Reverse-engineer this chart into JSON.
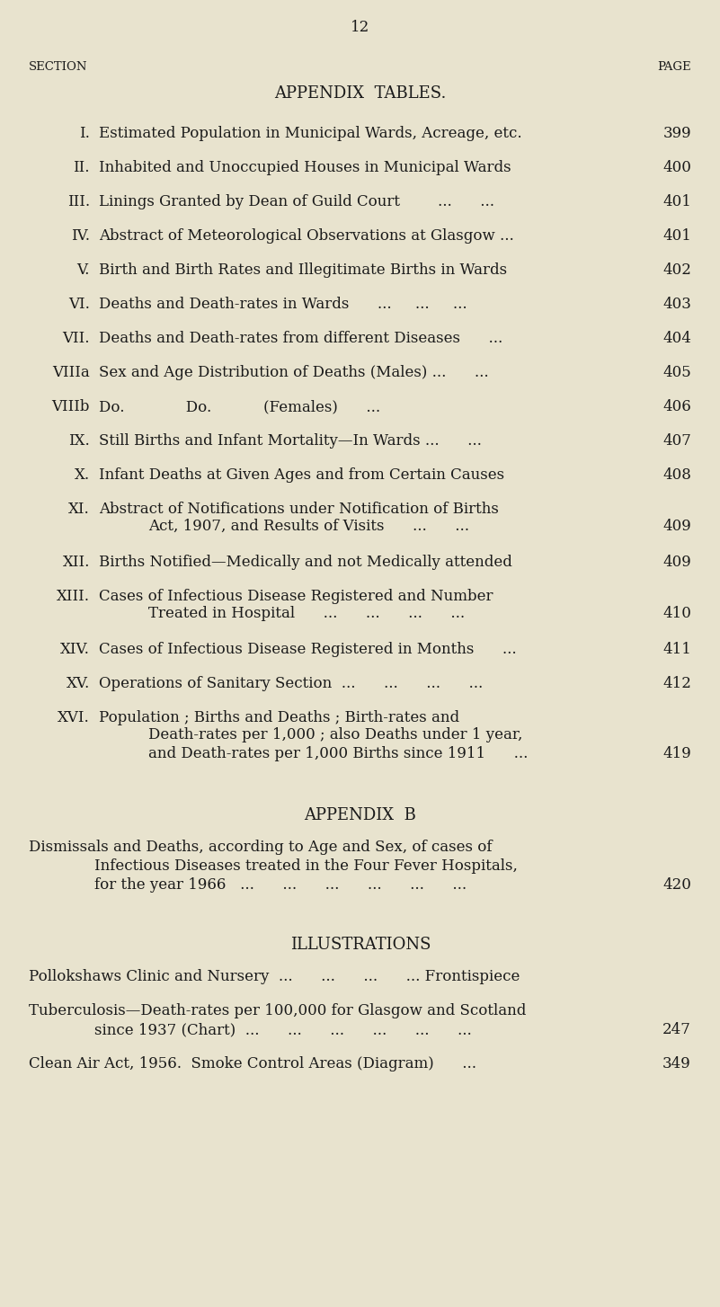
{
  "bg_color": "#e8e3ce",
  "text_color": "#1a1a1a",
  "page_number": "12",
  "section_label": "SECTION",
  "page_label": "PAGE",
  "appendix_tables_title": "APPENDIX  TABLES.",
  "entries": [
    {
      "num": "I.",
      "text": "Estimated Population in Municipal Wards, Acreage, etc.",
      "page": "399",
      "extra_lines": []
    },
    {
      "num": "II.",
      "text": "Inhabited and Unoccupied Houses in Municipal Wards",
      "page": "400",
      "extra_lines": []
    },
    {
      "num": "III.",
      "text": "Linings Granted by Dean of Guild Court        ...      ...",
      "page": "401",
      "extra_lines": []
    },
    {
      "num": "IV.",
      "text": "Abstract of Meteorological Observations at Glasgow ...",
      "page": "401",
      "extra_lines": []
    },
    {
      "num": "V.",
      "text": "Birth and Birth Rates and Illegitimate Births in Wards",
      "page": "402",
      "extra_lines": []
    },
    {
      "num": "VI.",
      "text": "Deaths and Death-rates in Wards      ...     ...     ...",
      "page": "403",
      "extra_lines": []
    },
    {
      "num": "VII.",
      "text": "Deaths and Death-rates from different Diseases      ...",
      "page": "404",
      "extra_lines": []
    },
    {
      "num": "VIIIa",
      "text": "Sex and Age Distribution of Deaths (Males) ...      ...",
      "page": "405",
      "extra_lines": []
    },
    {
      "num": "VIIIb",
      "text": "Do.             Do.           (Females)      ...",
      "page": "406",
      "extra_lines": []
    },
    {
      "num": "IX.",
      "text": "Still Births and Infant Mortality—In Wards ...      ...",
      "page": "407",
      "extra_lines": []
    },
    {
      "num": "X.",
      "text": "Infant Deaths at Given Ages and from Certain Causes",
      "page": "408",
      "extra_lines": []
    },
    {
      "num": "XI.",
      "text": "Abstract of Notifications under Notification of Births",
      "page": "409",
      "extra_lines": [
        "Act, 1907, and Results of Visits      ...      ..."
      ]
    },
    {
      "num": "XII.",
      "text": "Births Notified—Medically and not Medically attended",
      "page": "409",
      "extra_lines": []
    },
    {
      "num": "XIII.",
      "text": "Cases of Infectious Disease Registered and Number",
      "page": "410",
      "extra_lines": [
        "Treated in Hospital      ...      ...      ...      ..."
      ]
    },
    {
      "num": "XIV.",
      "text": "Cases of Infectious Disease Registered in Months      ...",
      "page": "411",
      "extra_lines": []
    },
    {
      "num": "XV.",
      "text": "Operations of Sanitary Section  ...      ...      ...      ...",
      "page": "412",
      "extra_lines": []
    },
    {
      "num": "XVI.",
      "text": "Population ; Births and Deaths ; Birth-rates and",
      "page": "419",
      "extra_lines": [
        "Death-rates per 1,000 ; also Deaths under 1 year,",
        "and Death-rates per 1,000 Births since 1911      ..."
      ]
    }
  ],
  "appendix_b_title": "APPENDIX  B",
  "appendix_b_lines": [
    "Dismissals and Deaths, according to Age and Sex, of cases of",
    "Infectious Diseases treated in the Four Fever Hospitals,",
    "for the year 1966   ...      ...      ...      ...      ...      ..."
  ],
  "appendix_b_page": "420",
  "illustrations_title": "ILLUSTRATIONS",
  "illustration_entries": [
    {
      "lines": [
        "Pollokshaws Clinic and Nursery  ...      ...      ...      ... Frontispiece"
      ],
      "page": ""
    },
    {
      "lines": [
        "Tuberculosis—Death-rates per 100,000 for Glasgow and Scotland",
        "since 1937 (Chart)  ...      ...      ...      ...      ...      ..."
      ],
      "page": "247"
    },
    {
      "lines": [
        "Clean Air Act, 1956.  Smoke Control Areas (Diagram)      ..."
      ],
      "page": "349"
    }
  ]
}
